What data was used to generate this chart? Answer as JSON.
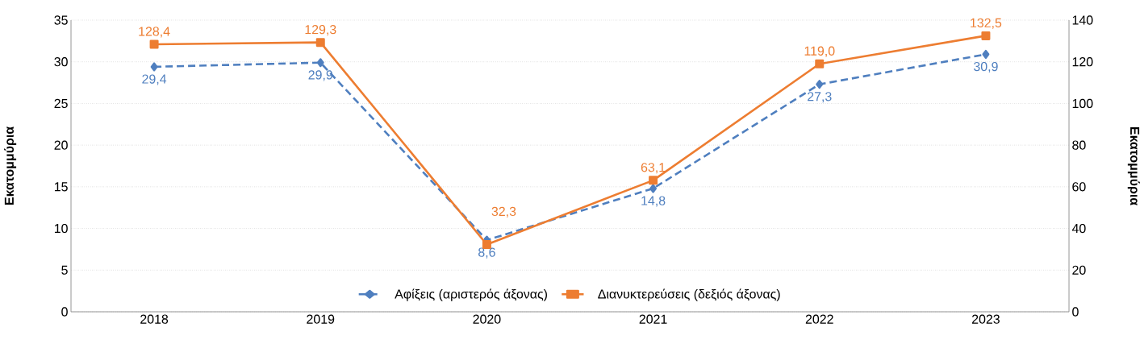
{
  "chart_data": {
    "type": "line",
    "categories": [
      "2018",
      "2019",
      "2020",
      "2021",
      "2022",
      "2023"
    ],
    "ylabel": "Εκατομμύρια",
    "y2label": "Εκατομμύρια",
    "ylim": [
      0,
      35
    ],
    "yticks": [
      0,
      5,
      10,
      15,
      20,
      25,
      30,
      35
    ],
    "y2lim": [
      0,
      140
    ],
    "y2ticks": [
      0,
      20,
      40,
      60,
      80,
      100,
      120,
      140
    ],
    "grid": "y",
    "legend": "bottom",
    "series": [
      {
        "name": "Αφίξεις (αριστερός άξονας)",
        "color": "#4f7fbf",
        "axis": "y",
        "marker": "diamond",
        "line_style": "dashed",
        "values": [
          29.4,
          29.9,
          8.6,
          14.8,
          27.3,
          30.9
        ],
        "value_labels": [
          "29,4",
          "29,9",
          "8,6",
          "14,8",
          "27,3",
          "30,9"
        ]
      },
      {
        "name": "Διανυκτερεύσεις (δεξιός άξονας)",
        "color": "#ed7d31",
        "axis": "y2",
        "marker": "square",
        "line_style": "solid",
        "values": [
          128.4,
          129.3,
          32.3,
          63.1,
          119.0,
          132.5
        ],
        "value_labels": [
          "128,4",
          "129,3",
          "32,3",
          "63,1",
          "119,0",
          "132,5"
        ]
      }
    ]
  }
}
